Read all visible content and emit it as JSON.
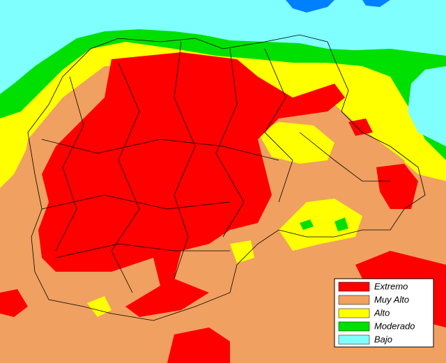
{
  "legend": {
    "items": [
      {
        "label": "Extremo",
        "color": "#ff0000"
      },
      {
        "label": "Muy Alto",
        "color": "#f0a060"
      },
      {
        "label": "Alto",
        "color": "#ffff00"
      },
      {
        "label": "Moderado",
        "color": "#00e000"
      },
      {
        "label": "Bajo",
        "color": "#80ffff"
      }
    ]
  }
}
